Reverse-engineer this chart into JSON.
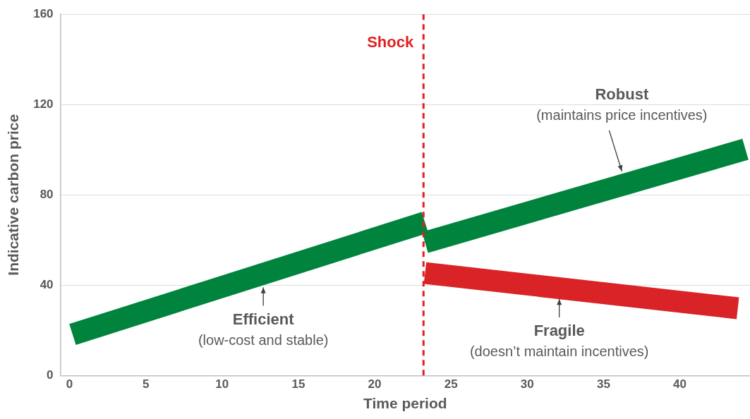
{
  "chart_data": {
    "type": "line",
    "xlabel": "Time period",
    "ylabel": "Indicative carbon price",
    "series": [
      {
        "type": "line",
        "color": "#00843d",
        "x": [
          0.2,
          23.3
        ],
        "values": [
          18.2,
          67.8
        ]
      },
      {
        "type": "line",
        "color": "#00843d",
        "x": [
          23.3,
          44.3
        ],
        "values": [
          59,
          100.2
        ]
      },
      {
        "type": "line",
        "color": "#d92327",
        "x": [
          23.3,
          43.8
        ],
        "values": [
          45.4,
          29.8
        ]
      }
    ],
    "xlim": [
      -0.6,
      44.6
    ],
    "xticks": [
      0,
      5,
      10,
      15,
      20,
      25,
      30,
      35,
      40
    ],
    "ylim": [
      0,
      160
    ],
    "yticks": [
      0,
      40,
      80,
      120,
      160
    ],
    "grid": "y",
    "legend": false,
    "marker": "none",
    "line_style": "solid",
    "ref_lines": [
      {
        "axis": "x",
        "value": 23.2,
        "label": "Shock",
        "color": "#e02020",
        "line_style": "dashed"
      }
    ],
    "annotations": [
      {
        "text": "Efficient\n(low-cost and stable)",
        "x": 12.7,
        "y": 39
      },
      {
        "text": "Robust\n(maintains price incentives)",
        "x": 36.2,
        "y": 90.5
      },
      {
        "text": "Fragile\n(doesn’t maintain incentives)",
        "x": 32.1,
        "y": 33.9
      }
    ]
  }
}
